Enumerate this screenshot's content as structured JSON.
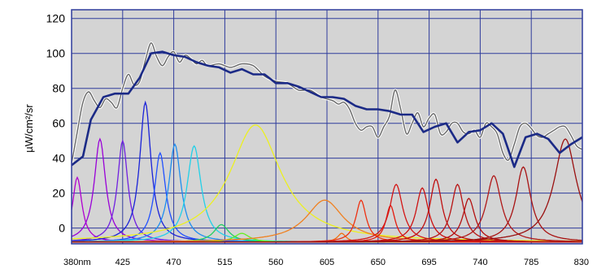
{
  "chart_data": {
    "type": "line",
    "ylabel": "µW/cm²/sr",
    "x_tick_labels": [
      "380nm",
      "425",
      "470",
      "515",
      "560",
      "605",
      "650",
      "695",
      "740",
      "785",
      "830"
    ],
    "x_ticks": [
      380,
      425,
      470,
      515,
      560,
      605,
      650,
      695,
      740,
      785,
      830
    ],
    "y_ticks": [
      0,
      20,
      40,
      60,
      80,
      100,
      120
    ],
    "xlim": [
      380,
      830
    ],
    "ylim": [
      -9,
      125
    ],
    "grid": true,
    "colors": {
      "plot_background": "#d4d4d4",
      "gridline": "#2f3c9c",
      "frame": "#2f3c9c",
      "measured_line": "#1b2a86",
      "fit_line": "#666666",
      "fit_halo": "#ffffff"
    },
    "led_channels": [
      {
        "peak": 385,
        "amplitude": 37,
        "width": 10,
        "color": "#b000d0"
      },
      {
        "peak": 405,
        "amplitude": 59,
        "width": 12,
        "color": "#9a00d8"
      },
      {
        "peak": 425,
        "amplitude": 58,
        "width": 11,
        "color": "#7020e0"
      },
      {
        "peak": 445,
        "amplitude": 80,
        "width": 12,
        "color": "#1a22d8"
      },
      {
        "peak": 458,
        "amplitude": 51,
        "width": 12,
        "color": "#2050ff"
      },
      {
        "peak": 471,
        "amplitude": 56,
        "width": 13,
        "color": "#1d8ef0"
      },
      {
        "peak": 488,
        "amplitude": 55,
        "width": 15,
        "color": "#22d0e8"
      },
      {
        "peak": 512,
        "amplitude": 10,
        "width": 16,
        "color": "#20d060"
      },
      {
        "peak": 530,
        "amplitude": 5,
        "width": 16,
        "color": "#66ee22"
      },
      {
        "peak": 542,
        "amplitude": 67,
        "width": 55,
        "color": "#ecf020"
      },
      {
        "peak": 603,
        "amplitude": 24,
        "width": 40,
        "color": "#f08020"
      },
      {
        "peak": 618,
        "amplitude": 5,
        "width": 9,
        "color": "#f07010"
      },
      {
        "peak": 635,
        "amplitude": 24,
        "width": 11,
        "color": "#ee3010"
      },
      {
        "peak": 661,
        "amplitude": 21,
        "width": 10,
        "color": "#e41a0e"
      },
      {
        "peak": 666,
        "amplitude": 33,
        "width": 14,
        "color": "#d41414"
      },
      {
        "peak": 689,
        "amplitude": 31,
        "width": 13,
        "color": "#cc1010"
      },
      {
        "peak": 701,
        "amplitude": 36,
        "width": 13,
        "color": "#c01010"
      },
      {
        "peak": 720,
        "amplitude": 33,
        "width": 13,
        "color": "#b81414"
      },
      {
        "peak": 730,
        "amplitude": 25,
        "width": 13,
        "color": "#b41010"
      },
      {
        "peak": 752,
        "amplitude": 38,
        "width": 16,
        "color": "#b01818"
      },
      {
        "peak": 778,
        "amplitude": 43,
        "width": 16,
        "color": "#a81212"
      },
      {
        "peak": 815,
        "amplitude": 59,
        "width": 24,
        "color": "#9a1010"
      }
    ],
    "series": [
      {
        "role": "measured",
        "x": [
          380,
          390,
          397,
          408,
          418,
          430,
          440,
          450,
          460,
          470,
          480,
          490,
          500,
          510,
          520,
          530,
          540,
          550,
          560,
          570,
          580,
          590,
          600,
          610,
          620,
          630,
          640,
          650,
          660,
          670,
          680,
          690,
          700,
          710,
          720,
          730,
          740,
          750,
          760,
          770,
          780,
          790,
          800,
          810,
          820,
          830
        ],
        "y": [
          36,
          41,
          62,
          75,
          77,
          77,
          86,
          100,
          101,
          99,
          98,
          95,
          93,
          92,
          89,
          91,
          88,
          88,
          83,
          83,
          81,
          78,
          75,
          75,
          74,
          70,
          68,
          68,
          67,
          65,
          65,
          55,
          58,
          60,
          49,
          55,
          56,
          60,
          54,
          35,
          52,
          54,
          51,
          43,
          48,
          52
        ]
      },
      {
        "role": "fit",
        "x": [
          380,
          385,
          390,
          395,
          400,
          405,
          410,
          415,
          420,
          425,
          430,
          435,
          440,
          445,
          450,
          455,
          460,
          465,
          470,
          475,
          480,
          485,
          490,
          495,
          500,
          510,
          520,
          530,
          540,
          550,
          560,
          570,
          580,
          590,
          600,
          610,
          615,
          620,
          625,
          630,
          635,
          640,
          645,
          650,
          655,
          660,
          665,
          670,
          675,
          680,
          685,
          690,
          695,
          700,
          705,
          710,
          715,
          720,
          725,
          730,
          735,
          740,
          745,
          750,
          755,
          760,
          765,
          770,
          775,
          780,
          785,
          790,
          795,
          800,
          805,
          810,
          815,
          820,
          825,
          830
        ],
        "y": [
          37,
          55,
          72,
          78,
          73,
          69,
          74,
          72,
          69,
          80,
          88,
          82,
          84,
          96,
          106,
          98,
          93,
          98,
          101,
          95,
          99,
          97,
          94,
          96,
          93,
          94,
          92,
          94,
          93,
          87,
          84,
          83,
          79,
          79,
          75,
          73,
          71,
          72,
          68,
          60,
          56,
          58,
          58,
          52,
          58,
          64,
          79,
          68,
          54,
          60,
          66,
          58,
          63,
          65,
          54,
          55,
          60,
          60,
          55,
          54,
          56,
          52,
          60,
          58,
          54,
          43,
          39,
          48,
          58,
          60,
          57,
          53,
          52,
          54,
          56,
          58,
          58,
          53,
          47,
          45
        ]
      }
    ]
  }
}
